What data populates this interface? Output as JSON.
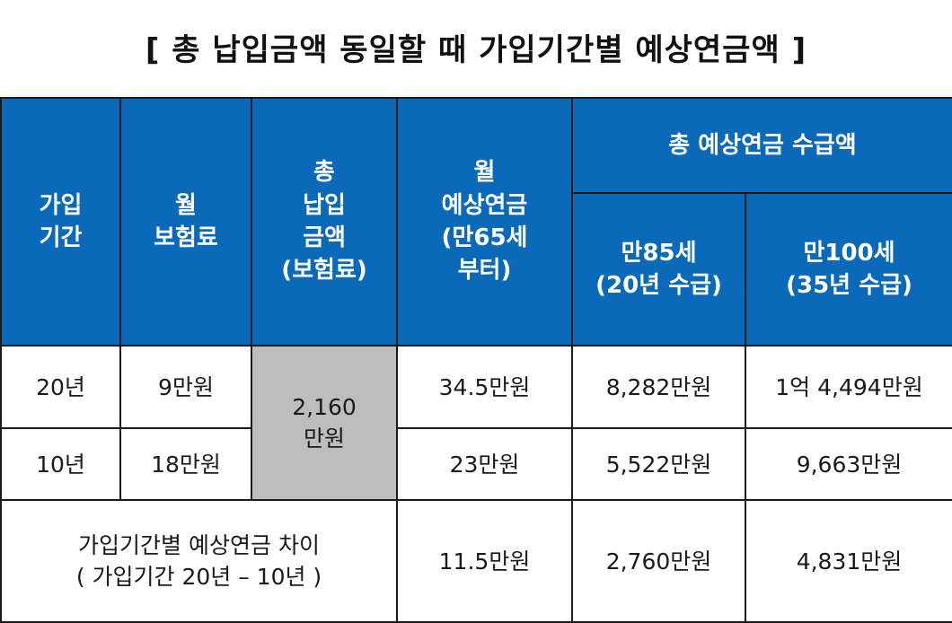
{
  "title": "[ 총 납입금액 동일할 때 가입기간별 예상연금액 ]",
  "header": {
    "period": "가입\n기간",
    "premium": "월\n보험료",
    "total_paid": "총\n납입\n금액\n(보험료)",
    "monthly_pension": "월\n예상연금\n(만65세\n부터)",
    "total_group": "총 예상연금 수급액",
    "age85": "만85세\n(20년 수급)",
    "age100": "만100세\n(35년 수급)"
  },
  "rows": [
    {
      "period": "20년",
      "premium": "9만원",
      "monthly": "34.5만원",
      "total85": "8,282만원",
      "total100": "1억 4,494만원"
    },
    {
      "period": "10년",
      "premium": "18만원",
      "monthly": "23만원",
      "total85": "5,522만원",
      "total100": "9,663만원"
    }
  ],
  "shared_total_paid": "2,160\n만원",
  "diff": {
    "label": "가입기간별 예상연금 차이\n( 가입기간 20년 – 10년 )",
    "monthly": "11.5만원",
    "total85": "2,760만원",
    "total100": "4,831만원"
  },
  "colors": {
    "header_bg": "#0a69b8",
    "merged_cell_bg": "#bdbdbd"
  }
}
